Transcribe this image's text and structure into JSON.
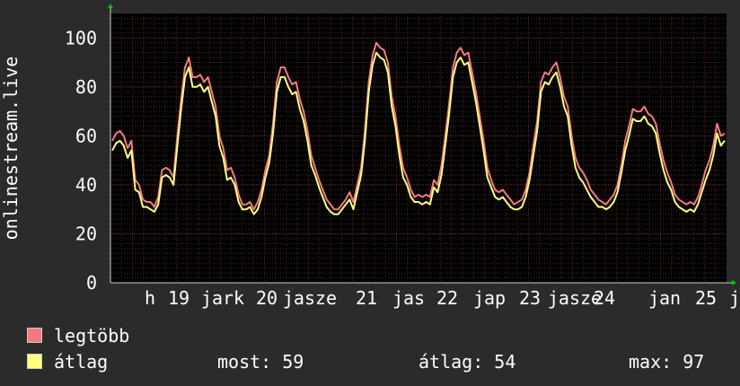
{
  "chart_data": {
    "type": "line",
    "ylabel": "onlinestream.live",
    "ylim": [
      0,
      110
    ],
    "yticks": [
      0,
      20,
      40,
      60,
      80,
      100
    ],
    "grid": true,
    "legend_placement": "bottom-left",
    "x_tick_labels": [
      "h",
      "19",
      "jark",
      "20",
      "jasze",
      "21",
      "jas",
      "22",
      "jap",
      "23",
      "jasze",
      "24",
      "jan",
      "25",
      "j"
    ],
    "series": [
      {
        "name": "legtöbb",
        "color": "#f07b80",
        "values": [
          58,
          61,
          62,
          60,
          55,
          58,
          42,
          40,
          34,
          33,
          33,
          31,
          35,
          46,
          47,
          46,
          43,
          60,
          75,
          88,
          92,
          84,
          84,
          85,
          82,
          84,
          78,
          72,
          60,
          55,
          46,
          47,
          43,
          36,
          32,
          32,
          33,
          30,
          33,
          38,
          46,
          52,
          65,
          82,
          88,
          88,
          84,
          81,
          82,
          75,
          70,
          62,
          52,
          47,
          42,
          38,
          34,
          32,
          30,
          30,
          32,
          34,
          37,
          33,
          40,
          47,
          62,
          82,
          93,
          98,
          96,
          95,
          90,
          76,
          68,
          56,
          47,
          43,
          38,
          35,
          36,
          35,
          36,
          35,
          42,
          40,
          48,
          60,
          73,
          88,
          94,
          96,
          93,
          94,
          86,
          78,
          68,
          58,
          47,
          42,
          38,
          37,
          38,
          36,
          34,
          32,
          33,
          34,
          38,
          45,
          56,
          66,
          82,
          86,
          85,
          88,
          90,
          84,
          76,
          72,
          60,
          51,
          47,
          45,
          42,
          38,
          36,
          34,
          33,
          32,
          34,
          36,
          40,
          48,
          58,
          64,
          71,
          70,
          70,
          72,
          69,
          68,
          65,
          57,
          50,
          45,
          41,
          36,
          34,
          33,
          32,
          33,
          32,
          35,
          40,
          46,
          50,
          56,
          65,
          60,
          61
        ]
      },
      {
        "name": "átlag",
        "color": "#ffff80",
        "values": [
          54,
          57,
          58,
          56,
          51,
          54,
          38,
          37,
          31,
          31,
          30,
          29,
          32,
          43,
          44,
          43,
          40,
          56,
          71,
          84,
          88,
          80,
          80,
          81,
          78,
          80,
          74,
          68,
          56,
          51,
          42,
          43,
          40,
          33,
          30,
          30,
          31,
          28,
          30,
          35,
          43,
          49,
          61,
          78,
          84,
          84,
          80,
          77,
          78,
          71,
          66,
          58,
          48,
          44,
          39,
          35,
          31,
          29,
          28,
          28,
          30,
          32,
          34,
          30,
          37,
          44,
          58,
          78,
          89,
          94,
          92,
          91,
          86,
          72,
          64,
          52,
          43,
          40,
          35,
          33,
          33,
          32,
          33,
          32,
          39,
          37,
          44,
          56,
          69,
          84,
          90,
          92,
          89,
          90,
          82,
          74,
          64,
          54,
          43,
          39,
          35,
          34,
          35,
          33,
          31,
          30,
          30,
          31,
          35,
          42,
          52,
          62,
          78,
          82,
          81,
          84,
          86,
          80,
          72,
          68,
          56,
          47,
          43,
          41,
          38,
          35,
          33,
          31,
          31,
          30,
          31,
          33,
          37,
          45,
          54,
          60,
          67,
          66,
          66,
          68,
          65,
          64,
          61,
          53,
          46,
          41,
          38,
          33,
          31,
          30,
          29,
          30,
          29,
          32,
          37,
          42,
          46,
          52,
          61,
          56,
          58
        ]
      }
    ]
  },
  "legend": {
    "items": [
      {
        "label": "legtöbb",
        "color": "#f07b80"
      },
      {
        "label": "átlag",
        "color": "#ffff80"
      }
    ],
    "stats": {
      "now_label": "most:",
      "now_value": "59",
      "avg_label": "átlag:",
      "avg_value": "54",
      "max_label": "max:",
      "max_value": "97"
    }
  }
}
